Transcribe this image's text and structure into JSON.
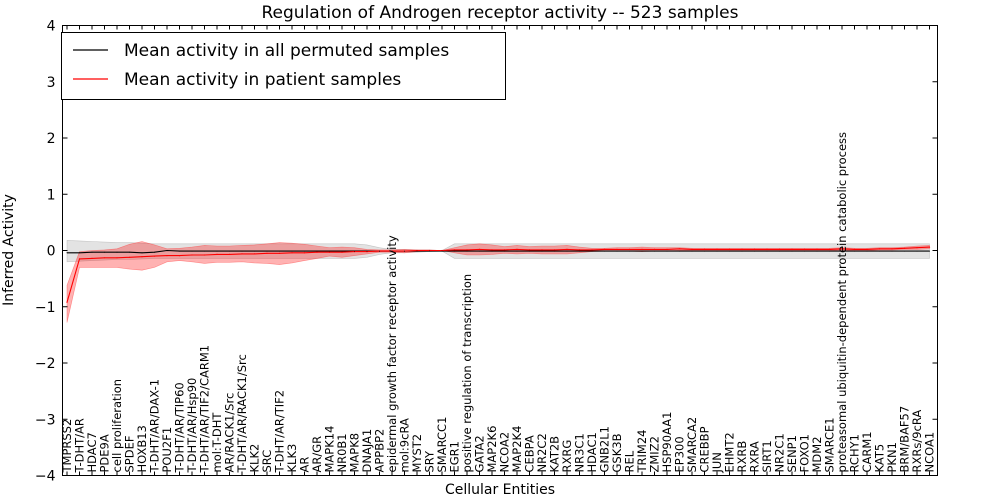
{
  "chart_data": {
    "type": "line",
    "title": "Regulation of Androgen receptor activity -- 523 samples",
    "xlabel": "Cellular Entities",
    "ylabel": "Inferred Activity",
    "ylim": [
      -4,
      4
    ],
    "yticks": [
      "4",
      "3",
      "2",
      "1",
      "0",
      "−1",
      "−2",
      "−3",
      "−4"
    ],
    "ytick_values": [
      4,
      3,
      2,
      1,
      0,
      -1,
      -2,
      -3,
      -4
    ],
    "legend": {
      "position": "top-left",
      "entries": [
        {
          "label": "Mean activity in all permuted samples",
          "color": "#000000"
        },
        {
          "label": "Mean activity in patient samples",
          "color": "#ff0000"
        }
      ]
    },
    "colors": {
      "permuted_line": "#000000",
      "patient_line": "#ff0000",
      "patient_band": "#ff0000",
      "permuted_band": "#b0b0b0"
    },
    "categories": [
      "TMPRSS2",
      "T-DHT/AR",
      "HDAC7",
      "PDE9A",
      "cell proliferation",
      "SPDEF",
      "HOXB13",
      "T-DHT/AR/DAX-1",
      "POU2F1",
      "T-DHT/AR/TIP60",
      "T-DHT/AR/Hsp90",
      "T-DHT/AR/TIF2/CARM1",
      "mol:T-DHT",
      "AR/RACK1/Src",
      "T-DHT/AR/RACK1/Src",
      "KLK2",
      "SRC",
      "T-DHT/AR/TIF2",
      "KLK3",
      "AR",
      "AR/GR",
      "MAPK14",
      "NR0B1",
      "MAPK8",
      "DNAJA1",
      "APPBP2",
      "epidermal growth factor receptor activity",
      "mol:9cRA",
      "MYST2",
      "SRY",
      "SMARCC1",
      "EGR1",
      "positive regulation of transcription",
      "GATA2",
      "MAP2K6",
      "NCOA2",
      "MAP2K4",
      "CEBPA",
      "NR2C2",
      "KAT2B",
      "RXRG",
      "NR3C1",
      "HDAC1",
      "GNB2L1",
      "GSK3B",
      "REL",
      "TRIM24",
      "ZMIZ2",
      "HSP90AA1",
      "EP300",
      "SMARCA2",
      "CREBBP",
      "JUN",
      "EHMT2",
      "RXRB",
      "RXRA",
      "SIRT1",
      "NR2C1",
      "SENP1",
      "FOXO1",
      "MDM2",
      "SMARCE1",
      "proteasomal ubiquitin-dependent protein catabolic process",
      "RCHY1",
      "CARM1",
      "KAT5",
      "PKN1",
      "BRM/BAF57",
      "RXRs/9cRA",
      "NCOA1"
    ],
    "series": [
      {
        "name": "Mean activity in patient samples",
        "values": [
          -0.92,
          -0.15,
          -0.14,
          -0.13,
          -0.13,
          -0.12,
          -0.11,
          -0.1,
          -0.09,
          -0.09,
          -0.08,
          -0.08,
          -0.07,
          -0.07,
          -0.06,
          -0.06,
          -0.05,
          -0.05,
          -0.04,
          -0.04,
          -0.03,
          -0.03,
          -0.03,
          -0.02,
          -0.02,
          -0.01,
          -0.01,
          -0.01,
          0.0,
          0.0,
          0.0,
          0.01,
          0.01,
          0.02,
          0.01,
          0.01,
          0.02,
          0.01,
          0.01,
          0.01,
          0.02,
          0.01,
          0.01,
          0.02,
          0.02,
          0.02,
          0.02,
          0.02,
          0.02,
          0.03,
          0.02,
          0.02,
          0.02,
          0.02,
          0.02,
          0.02,
          0.02,
          0.02,
          0.02,
          0.02,
          0.02,
          0.02,
          0.03,
          0.02,
          0.02,
          0.03,
          0.03,
          0.04,
          0.05,
          0.06
        ],
        "upper": [
          -0.62,
          -0.02,
          0.0,
          0.01,
          0.03,
          0.11,
          0.16,
          0.1,
          0.03,
          0.04,
          0.06,
          0.09,
          0.08,
          0.08,
          0.09,
          0.1,
          0.12,
          0.14,
          0.13,
          0.11,
          0.08,
          0.05,
          0.06,
          0.05,
          0.02,
          0.01,
          0.01,
          0.02,
          0.01,
          0.01,
          0.0,
          0.05,
          0.1,
          0.12,
          0.1,
          0.07,
          0.09,
          0.07,
          0.08,
          0.08,
          0.09,
          0.06,
          0.04,
          0.04,
          0.05,
          0.05,
          0.06,
          0.05,
          0.05,
          0.05,
          0.04,
          0.04,
          0.04,
          0.04,
          0.04,
          0.04,
          0.04,
          0.04,
          0.04,
          0.04,
          0.04,
          0.04,
          0.05,
          0.04,
          0.04,
          0.05,
          0.05,
          0.06,
          0.08,
          0.09
        ],
        "lower": [
          -1.28,
          -0.3,
          -0.3,
          -0.3,
          -0.3,
          -0.33,
          -0.35,
          -0.3,
          -0.2,
          -0.18,
          -0.2,
          -0.23,
          -0.21,
          -0.21,
          -0.2,
          -0.22,
          -0.23,
          -0.25,
          -0.22,
          -0.18,
          -0.14,
          -0.1,
          -0.12,
          -0.09,
          -0.06,
          -0.03,
          -0.03,
          -0.04,
          -0.02,
          -0.01,
          0.0,
          -0.04,
          -0.08,
          -0.08,
          -0.07,
          -0.05,
          -0.06,
          -0.05,
          -0.06,
          -0.06,
          -0.06,
          -0.04,
          -0.02,
          -0.01,
          -0.01,
          -0.01,
          -0.02,
          -0.01,
          -0.01,
          0.0,
          0.0,
          0.0,
          0.0,
          0.0,
          0.0,
          0.0,
          0.0,
          0.0,
          0.0,
          0.0,
          0.0,
          0.0,
          0.01,
          0.0,
          0.0,
          0.01,
          0.01,
          0.02,
          0.02,
          0.03
        ]
      },
      {
        "name": "Mean activity in all permuted samples",
        "values": [
          -0.04,
          -0.04,
          -0.03,
          -0.03,
          -0.03,
          -0.03,
          -0.04,
          -0.03,
          0.0,
          -0.01,
          -0.01,
          -0.01,
          -0.01,
          -0.01,
          -0.01,
          -0.01,
          -0.01,
          -0.01,
          -0.01,
          -0.01,
          -0.01,
          -0.01,
          -0.01,
          -0.01,
          -0.01,
          -0.01,
          -0.01,
          -0.01,
          -0.01,
          -0.01,
          -0.01,
          -0.01,
          -0.01,
          -0.01,
          -0.01,
          -0.01,
          -0.01,
          -0.01,
          -0.01,
          -0.01,
          -0.01,
          -0.01,
          -0.01,
          -0.01,
          -0.01,
          -0.01,
          -0.01,
          -0.01,
          -0.01,
          -0.01,
          -0.01,
          -0.01,
          -0.01,
          -0.01,
          -0.01,
          -0.01,
          -0.01,
          -0.01,
          -0.01,
          -0.01,
          -0.01,
          -0.01,
          -0.01,
          -0.01,
          -0.01,
          -0.01,
          -0.01,
          -0.01,
          -0.01,
          -0.01
        ],
        "upper": [
          0.18,
          0.17,
          0.16,
          0.15,
          0.14,
          0.14,
          0.13,
          0.12,
          0.12,
          0.12,
          0.12,
          0.12,
          0.12,
          0.12,
          0.12,
          0.12,
          0.12,
          0.12,
          0.12,
          0.12,
          0.12,
          0.12,
          0.12,
          0.12,
          0.1,
          0.05,
          0.02,
          0.02,
          0.01,
          0.01,
          0.0,
          0.12,
          0.12,
          0.12,
          0.12,
          0.12,
          0.12,
          0.12,
          0.12,
          0.12,
          0.12,
          0.12,
          0.12,
          0.12,
          0.12,
          0.12,
          0.12,
          0.12,
          0.12,
          0.12,
          0.12,
          0.12,
          0.12,
          0.12,
          0.12,
          0.12,
          0.12,
          0.12,
          0.12,
          0.12,
          0.12,
          0.12,
          0.12,
          0.12,
          0.12,
          0.12,
          0.12,
          0.12,
          0.12,
          0.12
        ],
        "lower": [
          -0.2,
          -0.19,
          -0.18,
          -0.17,
          -0.16,
          -0.16,
          -0.15,
          -0.14,
          -0.14,
          -0.14,
          -0.14,
          -0.14,
          -0.14,
          -0.14,
          -0.14,
          -0.14,
          -0.14,
          -0.14,
          -0.14,
          -0.14,
          -0.14,
          -0.14,
          -0.14,
          -0.14,
          -0.12,
          -0.07,
          -0.04,
          -0.04,
          -0.03,
          -0.02,
          -0.01,
          -0.14,
          -0.14,
          -0.14,
          -0.14,
          -0.14,
          -0.14,
          -0.14,
          -0.14,
          -0.14,
          -0.14,
          -0.14,
          -0.14,
          -0.14,
          -0.14,
          -0.14,
          -0.14,
          -0.14,
          -0.14,
          -0.14,
          -0.14,
          -0.14,
          -0.14,
          -0.14,
          -0.14,
          -0.14,
          -0.14,
          -0.14,
          -0.14,
          -0.14,
          -0.14,
          -0.14,
          -0.14,
          -0.14,
          -0.14,
          -0.14,
          -0.14,
          -0.14,
          -0.14,
          -0.14
        ]
      }
    ]
  }
}
